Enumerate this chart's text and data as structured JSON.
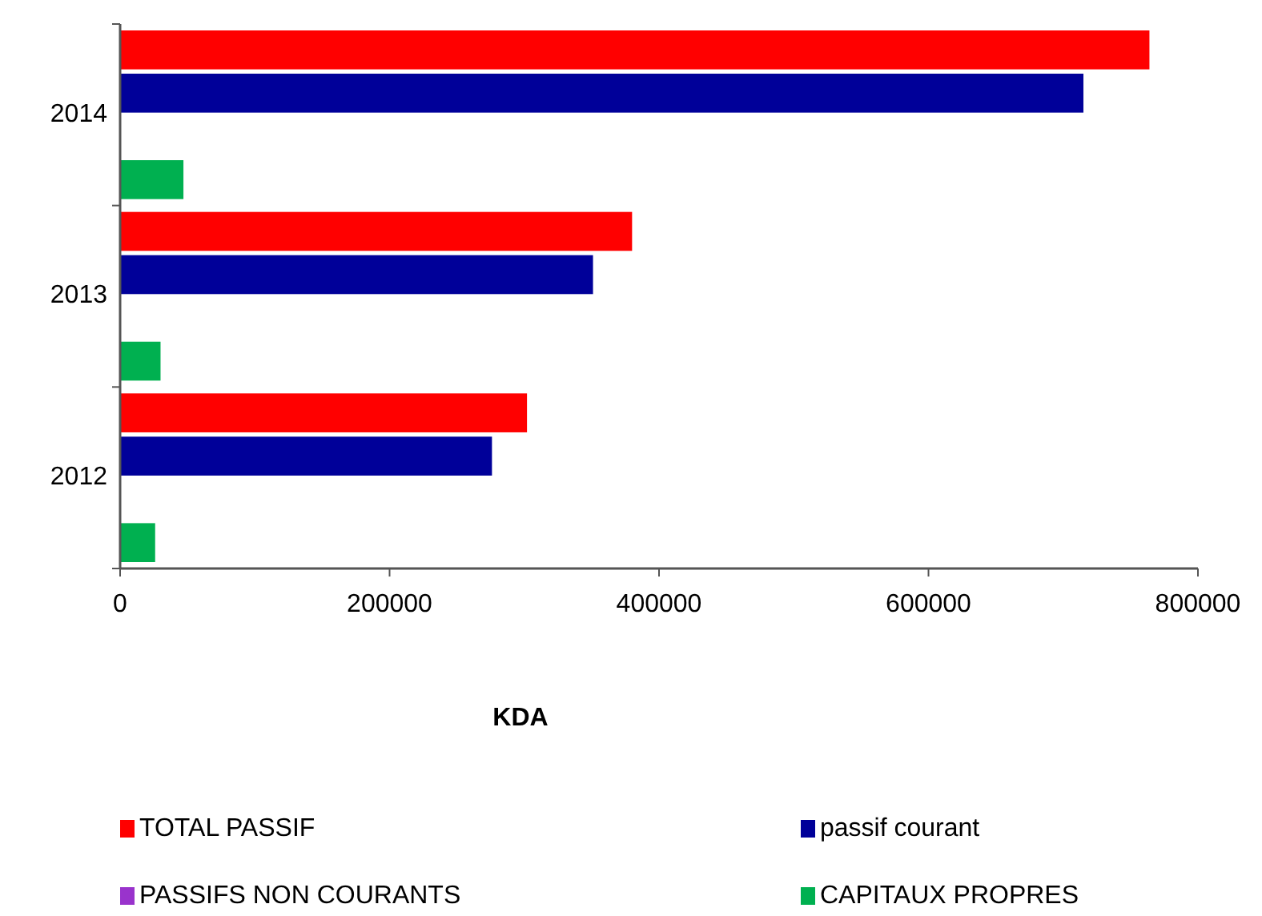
{
  "chart_data": {
    "type": "bar",
    "orientation": "horizontal",
    "xlabel": "KDA",
    "categories": [
      "2014",
      "2013",
      "2012"
    ],
    "series": [
      {
        "name": "TOTAL PASSIF",
        "color": "#ff0000",
        "values": [
          764000,
          380000,
          302000
        ]
      },
      {
        "name": "passif courant",
        "color": "#000099",
        "values": [
          715000,
          351000,
          276000
        ]
      },
      {
        "name": "PASSIFS NON COURANTS",
        "color": "#9933cc",
        "values": [
          null,
          null,
          null
        ]
      },
      {
        "name": "CAPITAUX PROPRES",
        "color": "#00b050",
        "values": [
          47000,
          30000,
          26000
        ]
      }
    ],
    "xlim": [
      0,
      800000
    ],
    "xticks": [
      0,
      200000,
      400000,
      600000,
      800000
    ],
    "legend": "bottom"
  }
}
